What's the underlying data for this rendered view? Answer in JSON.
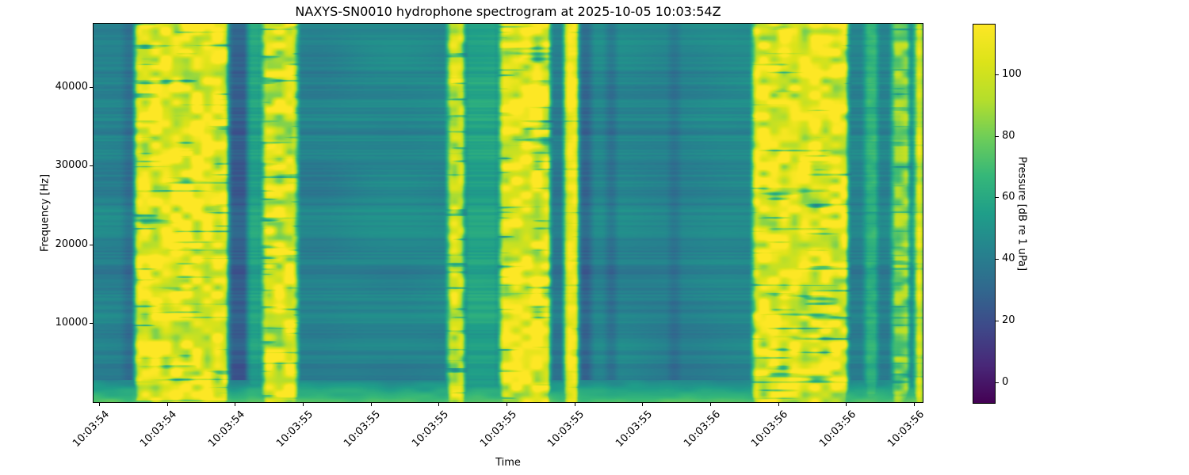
{
  "chart_data": {
    "type": "heatmap",
    "subtype": "spectrogram",
    "title": "NAXYS-SN0010 hydrophone spectrogram at 2025-10-05 10:03:54Z",
    "xlabel": "Time",
    "ylabel": "Frequency [Hz]",
    "grid": false,
    "x_tick_labels": [
      "10:03:54",
      "10:03:54",
      "10:03:54",
      "10:03:55",
      "10:03:55",
      "10:03:55",
      "10:03:55",
      "10:03:55",
      "10:03:55",
      "10:03:56",
      "10:03:56",
      "10:03:56",
      "10:03:56"
    ],
    "y_ticks": [
      {
        "value": 10000,
        "label": "10000"
      },
      {
        "value": 20000,
        "label": "20000"
      },
      {
        "value": 30000,
        "label": "30000"
      },
      {
        "value": 40000,
        "label": "40000"
      }
    ],
    "ylim": [
      0,
      48000
    ],
    "colorbar": {
      "label": "Pressure [dB re 1 uPa]",
      "ticks": [
        {
          "value": 0,
          "label": "0"
        },
        {
          "value": 20,
          "label": "20"
        },
        {
          "value": 40,
          "label": "40"
        },
        {
          "value": 60,
          "label": "60"
        },
        {
          "value": 80,
          "label": "80"
        },
        {
          "value": 100,
          "label": "100"
        }
      ],
      "vmin": -6.8,
      "vmax": 116.2,
      "position": "right"
    },
    "colormap": {
      "name": "viridis",
      "stops": [
        "#440154",
        "#482878",
        "#3e4989",
        "#31688e",
        "#26828e",
        "#1f9e89",
        "#35b779",
        "#6dcd59",
        "#b4de2c",
        "#dce319",
        "#fde725"
      ]
    },
    "background_level": 0.4,
    "time_bands": [
      {
        "x0": 0.036,
        "x1": 0.05,
        "level": 0.33,
        "mottle": 0
      },
      {
        "x0": 0.05,
        "x1": 0.162,
        "level": 0.93,
        "mottle": 1
      },
      {
        "x0": 0.164,
        "x1": 0.186,
        "level": 0.27,
        "mottle": 0
      },
      {
        "x0": 0.186,
        "x1": 0.202,
        "level": 0.52,
        "mottle": 0
      },
      {
        "x0": 0.204,
        "x1": 0.245,
        "level": 0.9,
        "mottle": 1
      },
      {
        "x0": 0.427,
        "x1": 0.447,
        "level": 0.86,
        "mottle": 0.9
      },
      {
        "x0": 0.449,
        "x1": 0.487,
        "level": 0.52,
        "mottle": 0
      },
      {
        "x0": 0.49,
        "x1": 0.551,
        "level": 0.92,
        "mottle": 1
      },
      {
        "x0": 0.552,
        "x1": 0.566,
        "level": 0.37,
        "mottle": 0
      },
      {
        "x0": 0.568,
        "x1": 0.585,
        "level": 0.97,
        "mottle": 0.5
      },
      {
        "x0": 0.586,
        "x1": 0.6,
        "level": 0.3,
        "mottle": 0
      },
      {
        "x0": 0.618,
        "x1": 0.63,
        "level": 0.34,
        "mottle": 0
      },
      {
        "x0": 0.694,
        "x1": 0.706,
        "level": 0.34,
        "mottle": 0
      },
      {
        "x0": 0.795,
        "x1": 0.91,
        "level": 0.92,
        "mottle": 1
      },
      {
        "x0": 0.911,
        "x1": 0.929,
        "level": 0.4,
        "mottle": 0
      },
      {
        "x0": 0.93,
        "x1": 0.946,
        "level": 0.58,
        "mottle": 0.2
      },
      {
        "x0": 0.947,
        "x1": 0.962,
        "level": 0.4,
        "mottle": 0
      },
      {
        "x0": 0.963,
        "x1": 0.984,
        "level": 0.74,
        "mottle": 0.6
      },
      {
        "x0": 0.985,
        "x1": 0.991,
        "level": 0.46,
        "mottle": 0
      },
      {
        "x0": 0.991,
        "x1": 1.0,
        "level": 0.95,
        "mottle": 0.5
      }
    ],
    "bottom_boost": {
      "rows": 28,
      "max_level": 0.67
    }
  }
}
